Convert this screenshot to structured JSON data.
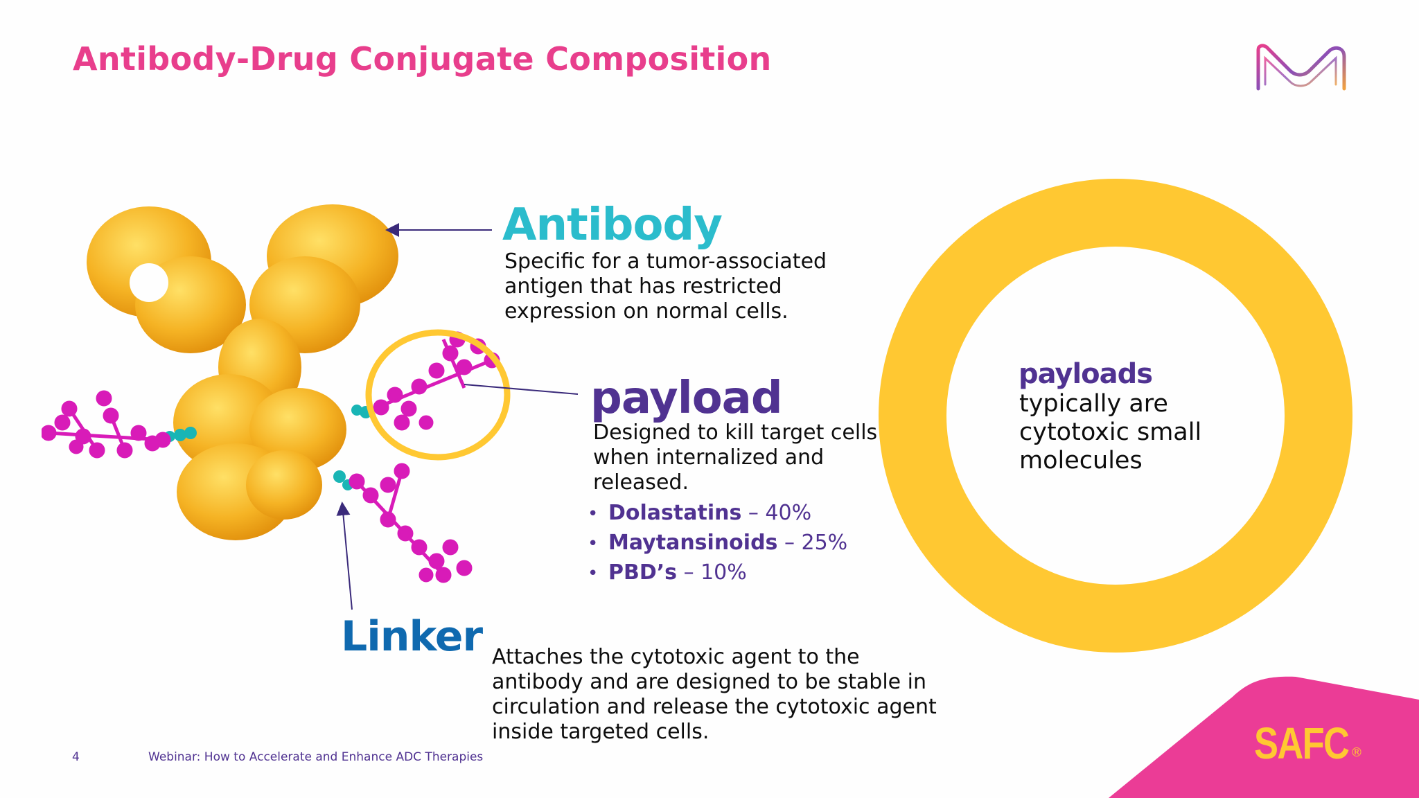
{
  "slide": {
    "title": "Antibody-Drug Conjugate Composition",
    "page_number": "4",
    "footer": "Webinar: How to Accelerate and Enhance ADC Therapies"
  },
  "antibody": {
    "heading": "Antibody",
    "text": "Specific for a tumor-associated antigen that has restricted expression on normal cells."
  },
  "payload": {
    "heading": "payload",
    "text": "Designed to kill target cells when internalized and released.",
    "items": [
      {
        "name": "Dolastatins",
        "value": "– 40%"
      },
      {
        "name": "Maytansinoids",
        "value": "– 25%"
      },
      {
        "name": "PBD’s",
        "value": "– 10%"
      }
    ]
  },
  "linker": {
    "heading": "Linker",
    "text": "Attaches the cytotoxic agent to the antibody and are designed to be stable in circulation and release the cytotoxic agent inside targeted cells."
  },
  "callout": {
    "heading": "payloads",
    "text": "typically are cytotoxic small molecules"
  },
  "brand": {
    "name": "SAFC",
    "registered": "®",
    "logo_icon": "merck-m-logo-icon"
  },
  "colors": {
    "title": "#e83e8c",
    "antibody": "#2bbccc",
    "payload": "#503291",
    "linker": "#0f69af",
    "ring": "#ffc832",
    "corner": "#eb3c96",
    "molecule_body": "#f5a623",
    "molecule_payload": "#d81bb8",
    "molecule_linker": "#19b5b5"
  }
}
